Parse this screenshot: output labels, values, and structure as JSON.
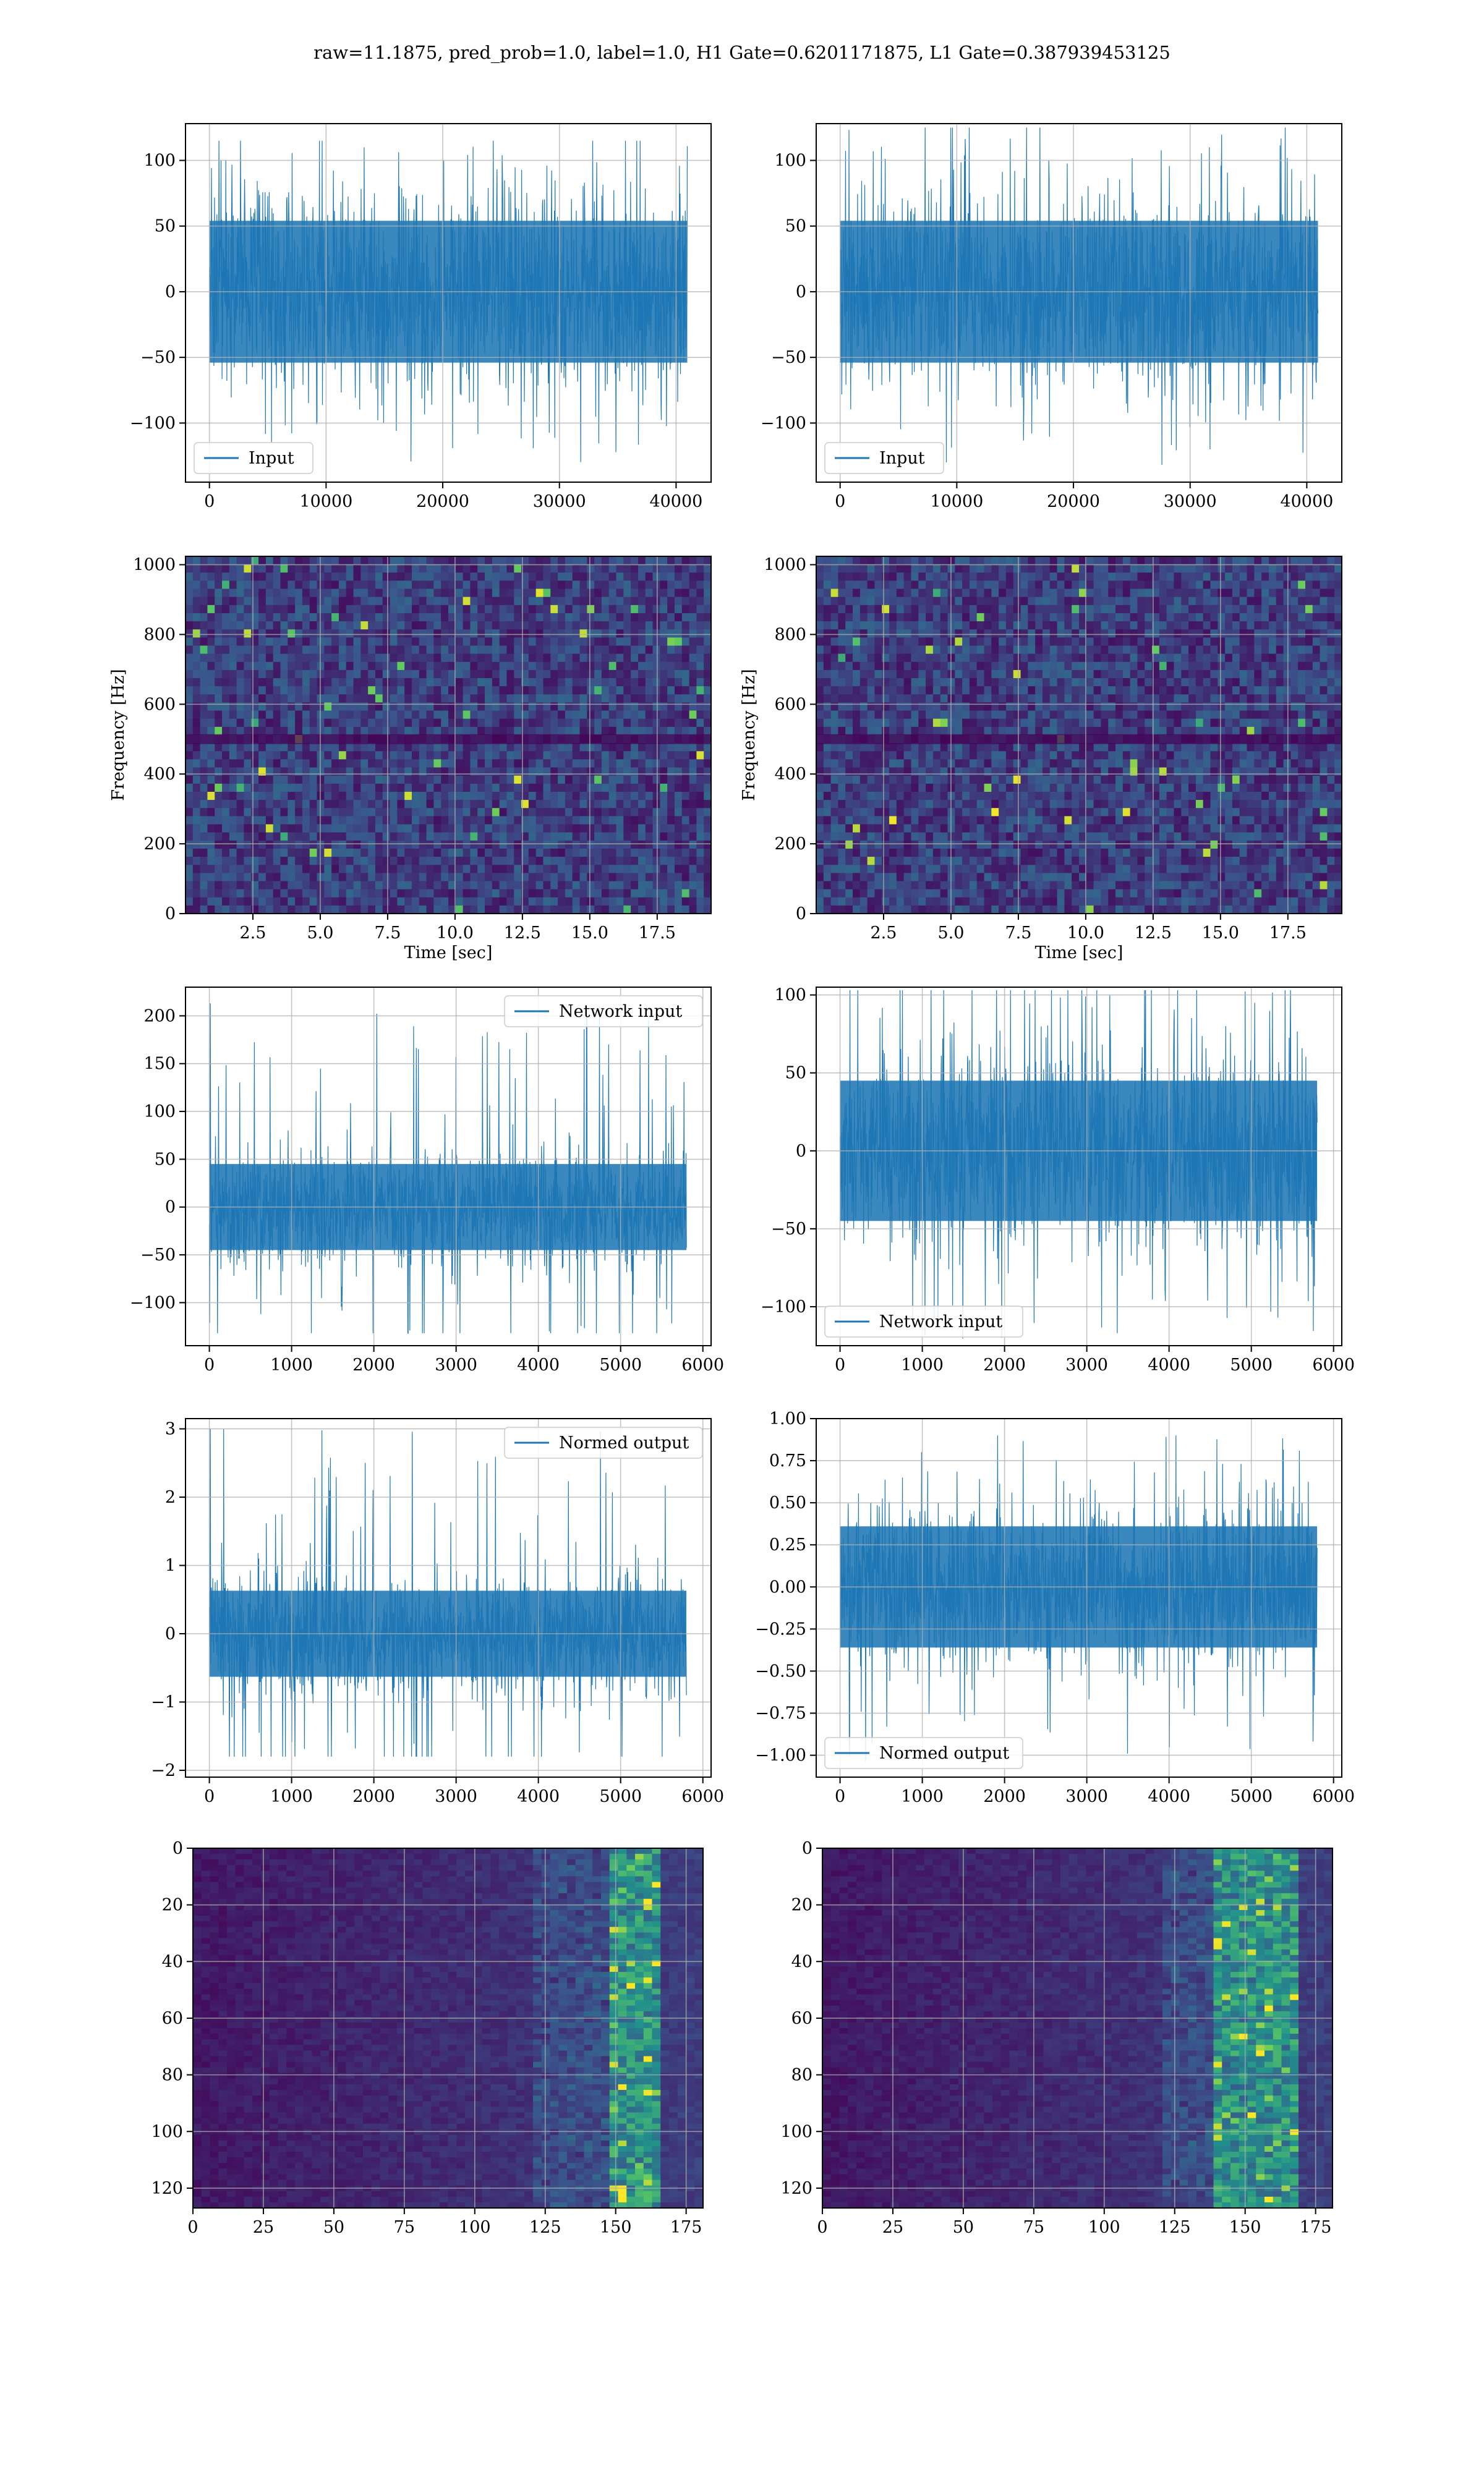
{
  "figure": {
    "title": "raw=11.1875, pred_prob=1.0, label=1.0, H1 Gate=0.6201171875, L1 Gate=0.387939453125"
  },
  "colors": {
    "line": "#1f77b4",
    "grid": "#b0b0b0",
    "viridis_low": "#440154",
    "viridis_mid": "#21918c",
    "viridis_high": "#fde725"
  },
  "chart_data": [
    {
      "type": "line",
      "panel": "row1-left",
      "legend": {
        "entries": [
          "Input"
        ],
        "placement": "lower left"
      },
      "xlim": [
        -2050,
        43000
      ],
      "ylim": [
        -145,
        128
      ],
      "xticks": [
        0,
        10000,
        20000,
        30000,
        40000
      ],
      "yticks": [
        -100,
        -50,
        0,
        50,
        100
      ],
      "x_range": [
        0,
        40960
      ],
      "envelope": {
        "typical_amplitude": 60,
        "max": 115,
        "min": -130
      },
      "grid": true
    },
    {
      "type": "line",
      "panel": "row1-right",
      "legend": {
        "entries": [
          "Input"
        ],
        "placement": "lower left"
      },
      "xlim": [
        -2050,
        43000
      ],
      "ylim": [
        -145,
        128
      ],
      "xticks": [
        0,
        10000,
        20000,
        30000,
        40000
      ],
      "yticks": [
        -100,
        -50,
        0,
        50,
        100
      ],
      "x_range": [
        0,
        40960
      ],
      "envelope": {
        "typical_amplitude": 60,
        "max": 125,
        "min": -132
      },
      "grid": true
    },
    {
      "type": "heatmap",
      "panel": "row2-left",
      "xlabel": "Time [sec]",
      "ylabel": "Frequency [Hz]",
      "xlim": [
        0,
        19.5
      ],
      "ylim": [
        0,
        1024
      ],
      "xticks": [
        2.5,
        5.0,
        7.5,
        10.0,
        12.5,
        15.0,
        17.5
      ],
      "yticks": [
        0,
        200,
        400,
        600,
        800,
        1000
      ],
      "colormap": "viridis",
      "grid": true
    },
    {
      "type": "heatmap",
      "panel": "row2-right",
      "xlabel": "Time [sec]",
      "ylabel": "Frequency [Hz]",
      "xlim": [
        0,
        19.5
      ],
      "ylim": [
        0,
        1024
      ],
      "xticks": [
        2.5,
        5.0,
        7.5,
        10.0,
        12.5,
        15.0,
        17.5
      ],
      "yticks": [
        0,
        200,
        400,
        600,
        800,
        1000
      ],
      "colormap": "viridis",
      "grid": true
    },
    {
      "type": "line",
      "panel": "row3-left",
      "legend": {
        "entries": [
          "Network input"
        ],
        "placement": "upper right"
      },
      "xlim": [
        -290,
        6100
      ],
      "ylim": [
        -145,
        230
      ],
      "xticks": [
        0,
        1000,
        2000,
        3000,
        4000,
        5000,
        6000
      ],
      "yticks": [
        -100,
        -50,
        0,
        50,
        100,
        150,
        200
      ],
      "x_range": [
        0,
        5800
      ],
      "envelope": {
        "typical_amplitude": 50,
        "max": 213,
        "min": -132
      },
      "spike_at_start": 213,
      "grid": true
    },
    {
      "type": "line",
      "panel": "row3-right",
      "legend": {
        "entries": [
          "Network input"
        ],
        "placement": "lower left"
      },
      "xlim": [
        -290,
        6100
      ],
      "ylim": [
        -125,
        105
      ],
      "xticks": [
        0,
        1000,
        2000,
        3000,
        4000,
        5000,
        6000
      ],
      "yticks": [
        -100,
        -50,
        0,
        50,
        100
      ],
      "x_range": [
        0,
        5800
      ],
      "envelope": {
        "typical_amplitude": 50,
        "max": 103,
        "min": -122
      },
      "grid": true
    },
    {
      "type": "line",
      "panel": "row4-left",
      "legend": {
        "entries": [
          "Normed output"
        ],
        "placement": "upper right"
      },
      "xlim": [
        -290,
        6100
      ],
      "ylim": [
        -2.1,
        3.15
      ],
      "xticks": [
        0,
        1000,
        2000,
        3000,
        4000,
        5000,
        6000
      ],
      "yticks": [
        -2,
        -1,
        0,
        1,
        2,
        3
      ],
      "x_range": [
        0,
        5800
      ],
      "envelope": {
        "typical_amplitude": 0.7,
        "max": 3.0,
        "min": -1.8
      },
      "spike_at_start": 3.0,
      "grid": true
    },
    {
      "type": "line",
      "panel": "row4-right",
      "legend": {
        "entries": [
          "Normed output"
        ],
        "placement": "lower left"
      },
      "xlim": [
        -290,
        6100
      ],
      "ylim": [
        -1.13,
        1.0
      ],
      "xticks": [
        0,
        1000,
        2000,
        3000,
        4000,
        5000,
        6000
      ],
      "ytick_labels": [
        "−1.00",
        "−0.75",
        "−0.50",
        "−0.25",
        "0.00",
        "0.25",
        "0.50",
        "0.75",
        "1.00"
      ],
      "yticks": [
        -1.0,
        -0.75,
        -0.5,
        -0.25,
        0.0,
        0.25,
        0.5,
        0.75,
        1.0
      ],
      "x_range": [
        0,
        5800
      ],
      "envelope": {
        "typical_amplitude": 0.4,
        "max": 0.9,
        "min": -1.05
      },
      "grid": true
    },
    {
      "type": "heatmap",
      "panel": "row5-left",
      "xlim": [
        0,
        181
      ],
      "ylim": [
        127,
        0
      ],
      "xticks": [
        0,
        25,
        50,
        75,
        100,
        125,
        150,
        175
      ],
      "yticks": [
        0,
        20,
        40,
        60,
        80,
        100,
        120
      ],
      "colormap": "viridis",
      "hot_band_x": [
        148,
        165
      ],
      "grid": true
    },
    {
      "type": "heatmap",
      "panel": "row5-right",
      "xlim": [
        0,
        181
      ],
      "ylim": [
        127,
        0
      ],
      "xticks": [
        0,
        25,
        50,
        75,
        100,
        125,
        150,
        175
      ],
      "yticks": [
        0,
        20,
        40,
        60,
        80,
        100,
        120
      ],
      "colormap": "viridis",
      "hot_band_x": [
        140,
        170
      ],
      "grid": true
    }
  ]
}
